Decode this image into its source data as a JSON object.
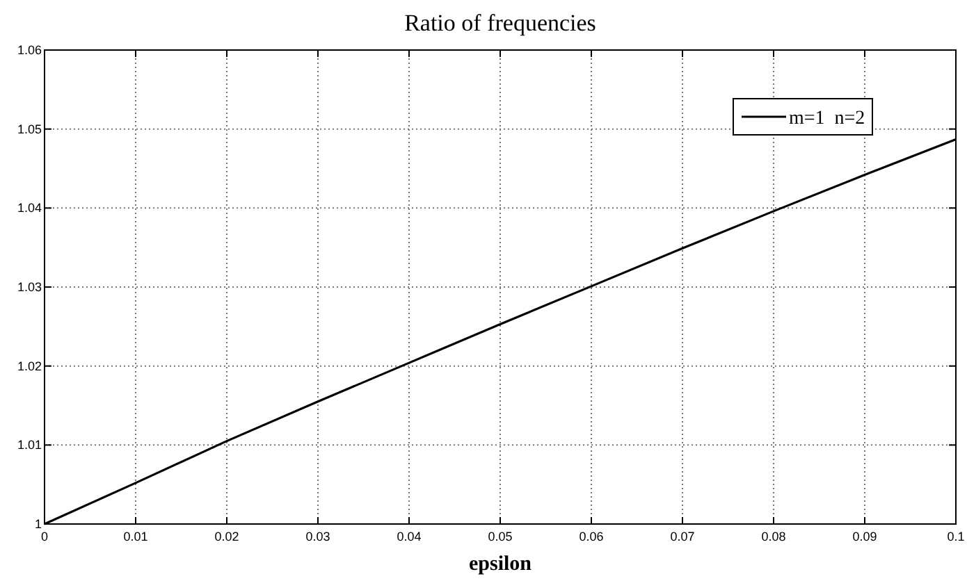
{
  "chart_data": {
    "type": "line",
    "title": "Ratio of frequencies",
    "xlabel": "epsilon",
    "x": [
      0,
      0.01,
      0.02,
      0.03,
      0.04,
      0.05,
      0.06,
      0.07,
      0.08,
      0.09,
      0.1
    ],
    "series": [
      {
        "name": "m=1  n=2",
        "color": "#000000",
        "values": [
          1,
          1.0052,
          1.0105,
          1.0155,
          1.0204,
          1.0253,
          1.0301,
          1.0349,
          1.0396,
          1.0442,
          1.0487
        ]
      }
    ],
    "xlim": [
      0,
      0.1
    ],
    "xticks": [
      0,
      0.01,
      0.02,
      0.03,
      0.04,
      0.05,
      0.06,
      0.07,
      0.08,
      0.09,
      0.1
    ],
    "ylim": [
      1,
      1.06
    ],
    "yticks": [
      1,
      1.01,
      1.02,
      1.03,
      1.04,
      1.05,
      1.06
    ],
    "grid": true,
    "legend": "top right",
    "line_style": "solid",
    "marker": "none"
  }
}
